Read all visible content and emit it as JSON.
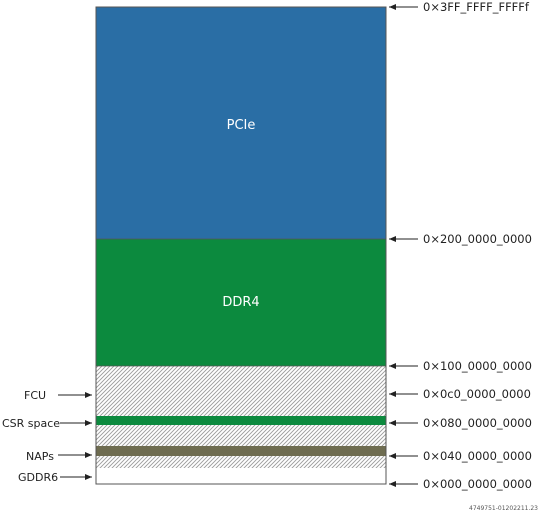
{
  "colors": {
    "pcie": "#2a6ea5",
    "ddr4": "#0c8a3e",
    "csr": "#0c8a3e",
    "naps": "#6e6c50",
    "gddr6": "#ffffff",
    "hatch": "#9a9a9a",
    "border": "#555555",
    "arrow": "#222222"
  },
  "blocks": {
    "pcie": {
      "label": "PCIe"
    },
    "ddr4": {
      "label": "DDR4"
    }
  },
  "addresses": [
    {
      "label": "0×3FF_FFFF_FFFFf"
    },
    {
      "label": "0×200_0000_0000"
    },
    {
      "label": "0×100_0000_0000"
    },
    {
      "label": "0×0c0_0000_0000"
    },
    {
      "label": "0×080_0000_0000"
    },
    {
      "label": "0×040_0000_0000"
    },
    {
      "label": "0×000_0000_0000"
    }
  ],
  "left_labels": [
    {
      "label": "FCU"
    },
    {
      "label": "CSR space"
    },
    {
      "label": "NAPs"
    },
    {
      "label": "GDDR6"
    }
  ],
  "figure_id": "4749751-01202211.23"
}
